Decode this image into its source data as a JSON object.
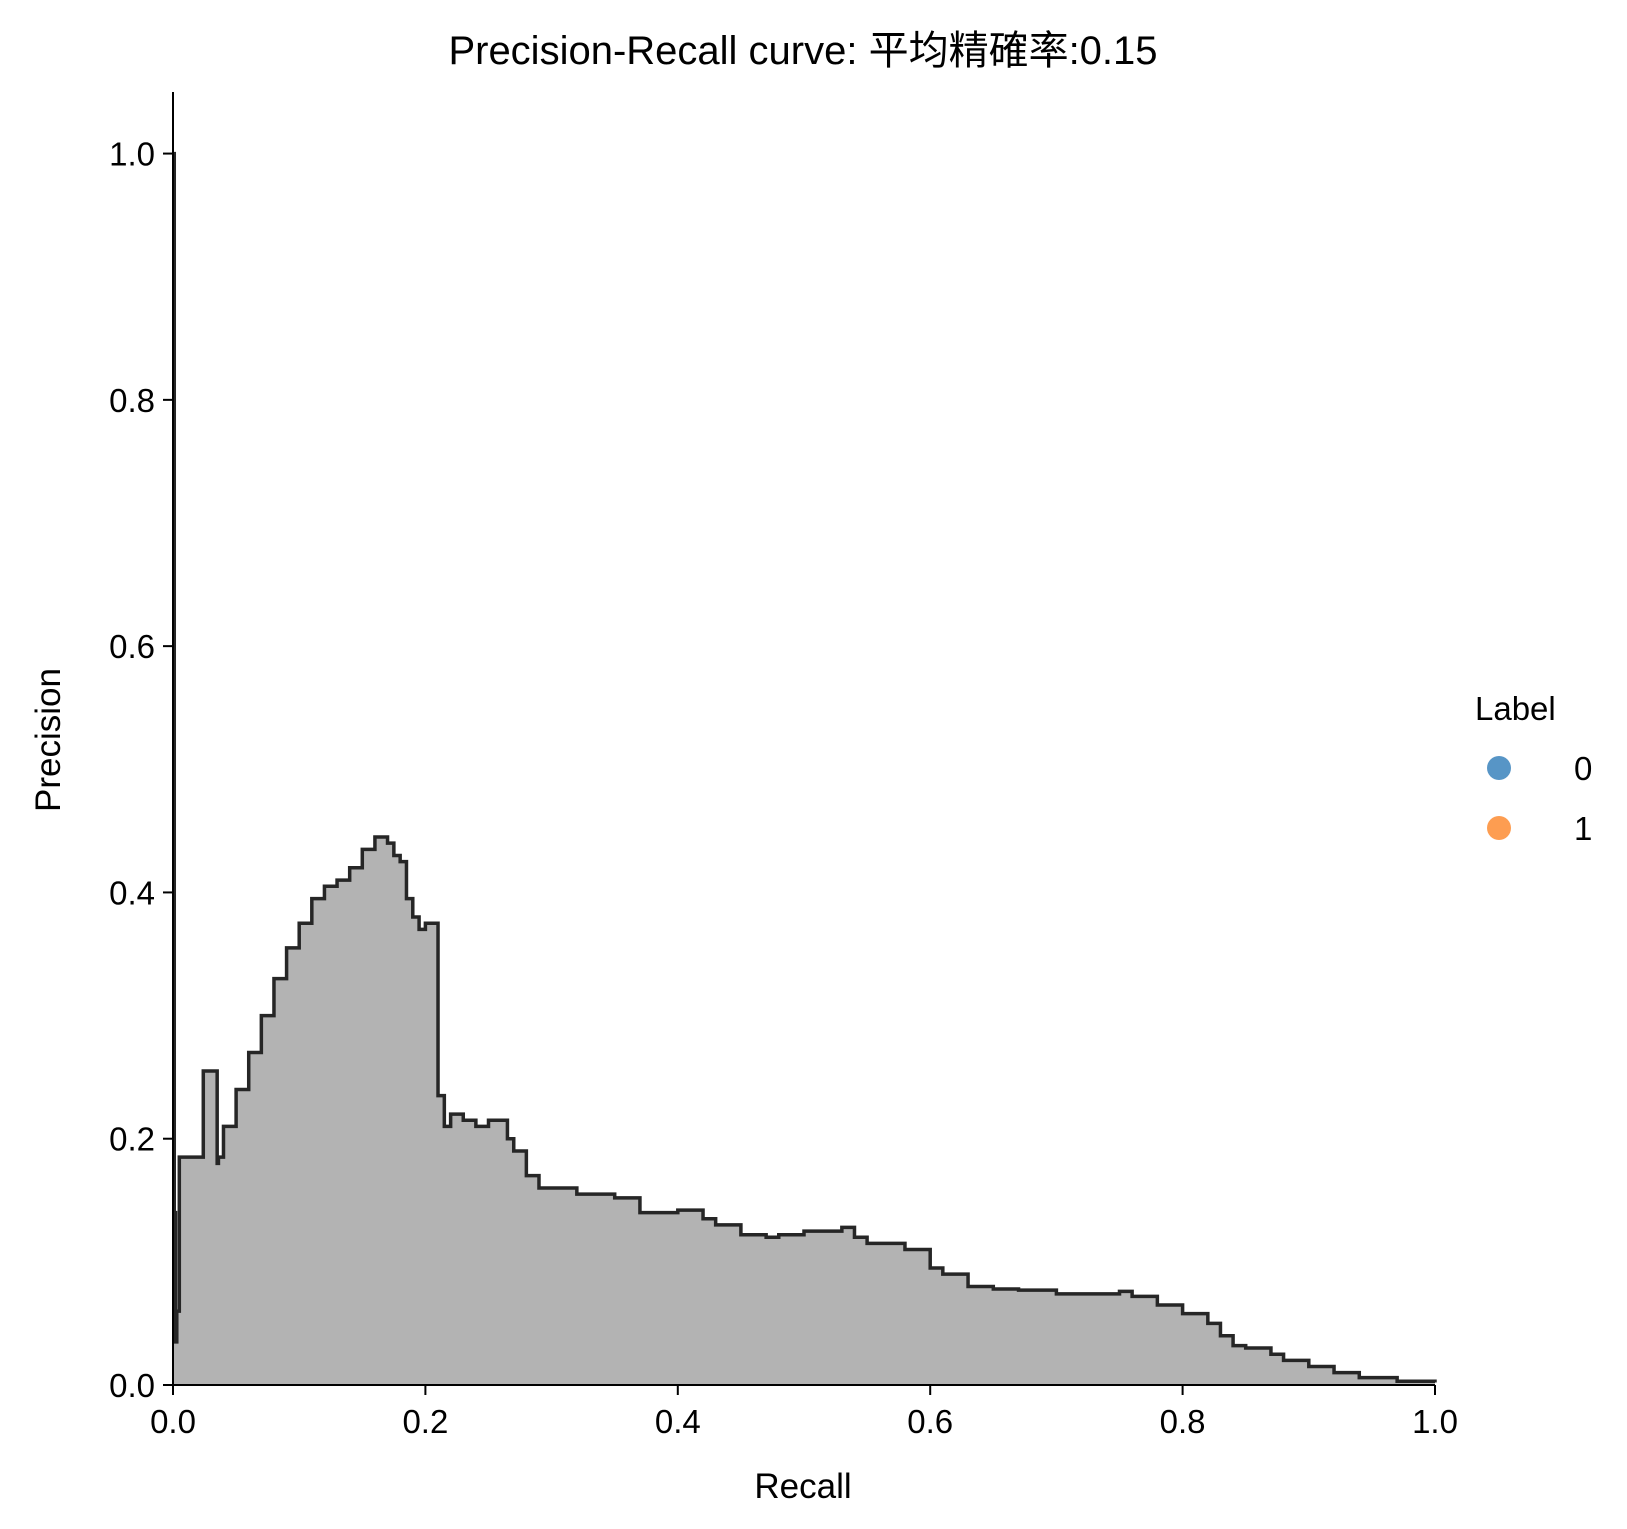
{
  "chart_data": {
    "type": "area",
    "title": "Precision-Recall curve: 平均精確率:0.15",
    "xlabel": "Recall",
    "ylabel": "Precision",
    "xlim": [
      0.0,
      1.0
    ],
    "ylim": [
      0.0,
      1.05
    ],
    "xticks": [
      "0.0",
      "0.2",
      "0.4",
      "0.6",
      "0.8",
      "1.0"
    ],
    "yticks": [
      "0.0",
      "0.2",
      "0.4",
      "0.6",
      "0.8",
      "1.0"
    ],
    "grid": false,
    "step": "post",
    "fill_color": "#b3b3b3",
    "line_color": "#262626",
    "series": [
      {
        "x": [
          0.0,
          0.001,
          0.002,
          0.003,
          0.005,
          0.008,
          0.022,
          0.024,
          0.026,
          0.035,
          0.036,
          0.04,
          0.05,
          0.06,
          0.07,
          0.08,
          0.09,
          0.1,
          0.11,
          0.12,
          0.13,
          0.14,
          0.15,
          0.16,
          0.17,
          0.175,
          0.18,
          0.185,
          0.19,
          0.195,
          0.2,
          0.205,
          0.21,
          0.215,
          0.22,
          0.23,
          0.24,
          0.25,
          0.26,
          0.265,
          0.27,
          0.28,
          0.29,
          0.3,
          0.31,
          0.32,
          0.33,
          0.35,
          0.37,
          0.4,
          0.42,
          0.43,
          0.45,
          0.47,
          0.48,
          0.5,
          0.52,
          0.53,
          0.54,
          0.55,
          0.58,
          0.6,
          0.61,
          0.63,
          0.65,
          0.67,
          0.7,
          0.75,
          0.76,
          0.78,
          0.8,
          0.82,
          0.83,
          0.84,
          0.85,
          0.87,
          0.88,
          0.9,
          0.92,
          0.94,
          0.97,
          1.0
        ],
        "y": [
          1.0,
          0.14,
          0.035,
          0.06,
          0.185,
          0.185,
          0.185,
          0.255,
          0.255,
          0.18,
          0.185,
          0.21,
          0.24,
          0.27,
          0.3,
          0.33,
          0.355,
          0.375,
          0.395,
          0.405,
          0.41,
          0.42,
          0.435,
          0.445,
          0.44,
          0.43,
          0.425,
          0.395,
          0.38,
          0.37,
          0.375,
          0.375,
          0.235,
          0.21,
          0.22,
          0.215,
          0.21,
          0.215,
          0.215,
          0.2,
          0.19,
          0.17,
          0.16,
          0.16,
          0.16,
          0.155,
          0.155,
          0.152,
          0.14,
          0.142,
          0.135,
          0.13,
          0.122,
          0.12,
          0.122,
          0.125,
          0.125,
          0.128,
          0.12,
          0.115,
          0.11,
          0.095,
          0.09,
          0.08,
          0.078,
          0.077,
          0.074,
          0.076,
          0.072,
          0.065,
          0.058,
          0.05,
          0.04,
          0.032,
          0.03,
          0.025,
          0.02,
          0.015,
          0.01,
          0.006,
          0.003,
          0.002
        ]
      }
    ],
    "legend": {
      "title": "Label",
      "position": "center-right",
      "items": [
        {
          "label": "0",
          "color": "#3a83bc"
        },
        {
          "label": "1",
          "color": "#fd8c32"
        }
      ]
    }
  }
}
